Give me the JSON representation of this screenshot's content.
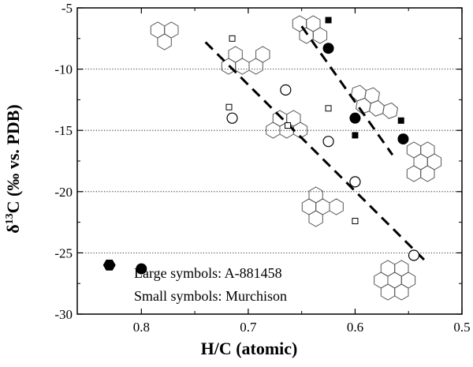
{
  "chart_data": {
    "type": "scatter",
    "title": "",
    "xlabel": "H/C (atomic)",
    "ylabel_parts": {
      "delta": "δ",
      "sup": "13",
      "rest": "C (‰ vs. PDB)"
    },
    "xlim": [
      0.5,
      0.86
    ],
    "x_reversed": true,
    "ylim": [
      -30,
      -5
    ],
    "x_ticks": [
      0.8,
      0.7,
      0.6,
      0.5
    ],
    "x_tick_labels": [
      "0.8",
      "0.7",
      "0.6",
      "0.5"
    ],
    "y_ticks": [
      -5,
      -10,
      -15,
      -20,
      -25,
      -30
    ],
    "y_tick_labels": [
      "-5",
      "-10",
      "-15",
      "-20",
      "-25",
      "-30"
    ],
    "grid": {
      "style": "dotted",
      "y_lines": [
        -10,
        -15,
        -20,
        -25
      ]
    },
    "legend_text": [
      "Large symbols: A-881458",
      "Small symbols: Murchison"
    ],
    "series": [
      {
        "marker": "open-circle-large",
        "points": [
          [
            0.715,
            -14.0
          ],
          [
            0.665,
            -11.7
          ],
          [
            0.625,
            -15.9
          ],
          [
            0.6,
            -19.2
          ],
          [
            0.545,
            -25.2
          ]
        ]
      },
      {
        "marker": "open-square-small",
        "points": [
          [
            0.715,
            -7.5
          ],
          [
            0.718,
            -13.1
          ],
          [
            0.663,
            -14.6
          ],
          [
            0.625,
            -13.2
          ],
          [
            0.6,
            -22.4
          ]
        ]
      },
      {
        "marker": "filled-circle-large",
        "points": [
          [
            0.625,
            -8.3
          ],
          [
            0.6,
            -14.0
          ],
          [
            0.555,
            -15.7
          ],
          [
            0.8,
            -26.3
          ]
        ]
      },
      {
        "marker": "filled-square-small",
        "points": [
          [
            0.625,
            -6.0
          ],
          [
            0.6,
            -15.4
          ],
          [
            0.557,
            -14.2
          ]
        ]
      },
      {
        "marker": "filled-hexagon-large",
        "points": [
          [
            0.83,
            -26.0
          ]
        ]
      }
    ],
    "trend_lines": [
      {
        "style": "dashed",
        "from": [
          0.74,
          -7.8
        ],
        "to": [
          0.535,
          -25.6
        ]
      },
      {
        "style": "dashed",
        "from": [
          0.65,
          -6.5
        ],
        "to": [
          0.565,
          -17.0
        ]
      }
    ],
    "molecule_icons": [
      "phenalene",
      "fluoranthene",
      "chrysene",
      "benzofluoranthene",
      "pyrene",
      "benzoperylene",
      "benzo-phenanthrene",
      "coronene"
    ]
  }
}
